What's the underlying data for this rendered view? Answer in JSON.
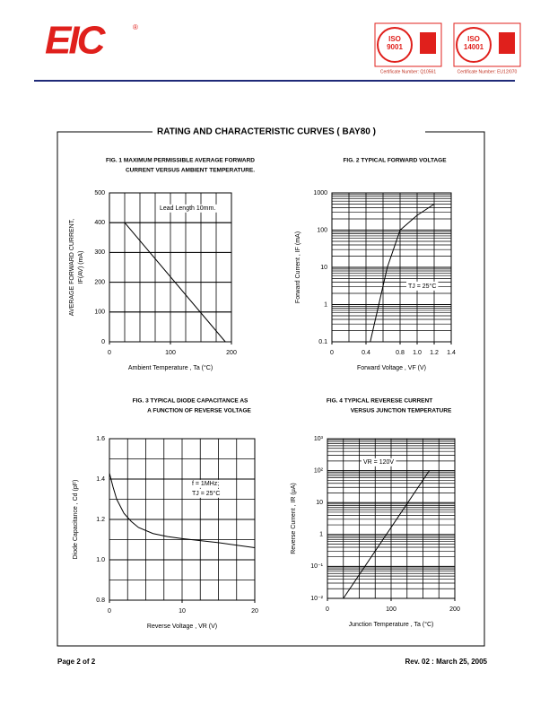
{
  "header": {
    "logo": "EIC",
    "registered": "®",
    "badges": [
      {
        "iso": "ISO",
        "number": "9001",
        "cert": "Certificate Number: Q10561"
      },
      {
        "iso": "ISO",
        "number": "14001",
        "cert": "Certificate Number: EU12/070"
      }
    ]
  },
  "title": "RATING AND CHARACTERISTIC CURVES  ( BAY80 )",
  "footer": {
    "page": "Page 2 of 2",
    "revision": "Rev. 02 : March 25, 2005"
  },
  "chart_data": [
    {
      "type": "line",
      "title_lines": [
        "FIG. 1 MAXIMUM PERMISSIBLE AVERAGE FORWARD",
        "CURRENT VERSUS AMBIENT TEMPERATURE."
      ],
      "xlabel": "Ambient Temperature , Ta (°C)",
      "ylabel_lines": [
        "AVERAGE FORWARD CURRENT,",
        "IF(AV) (mA)"
      ],
      "x": [
        25,
        190
      ],
      "values": [
        400,
        0
      ],
      "color": "#000000",
      "xlim": [
        0,
        200
      ],
      "xticks": [
        0,
        100,
        200
      ],
      "ylim": [
        0,
        500
      ],
      "yticks": [
        0,
        100,
        200,
        300,
        400,
        500
      ],
      "grid": true,
      "xgrid_step": 25,
      "ygrid_step": 100,
      "ylog": false,
      "annotations": [
        "Lead Length 10mm."
      ]
    },
    {
      "type": "line",
      "title_lines": [
        "FIG. 2 TYPICAL FORWARD VOLTAGE"
      ],
      "xlabel": "Forward Voltage , VF (V)",
      "ylabel_lines": [
        "Forward Current , IF (mA)"
      ],
      "x": [
        0.45,
        0.55,
        0.65,
        0.8,
        1.0,
        1.2
      ],
      "values": [
        0.1,
        1,
        10,
        100,
        250,
        500
      ],
      "color": "#000000",
      "xlim": [
        0,
        1.4
      ],
      "xticks": [
        0,
        0.4,
        0.8,
        {
          "value": 1,
          "label": "1.0"
        },
        1.2,
        1.4
      ],
      "ylim": [
        0.1,
        1000
      ],
      "yticks": [
        0.1,
        1,
        10,
        100,
        1000
      ],
      "grid": true,
      "xgrid_step": 0.2,
      "ylog": true,
      "annotations": [
        "TJ = 25°C"
      ]
    },
    {
      "type": "line",
      "title_lines": [
        "FIG. 3 TYPICAL DIODE CAPACITANCE AS",
        "A FUNCTION OF REVERSE VOLTAGE"
      ],
      "xlabel": "Reverse Voltage , VR (V)",
      "ylabel_lines": [
        "Diode Capacitance , Cd (pF)"
      ],
      "x": [
        0,
        0.5,
        1,
        2,
        3,
        4,
        6,
        8,
        10,
        15,
        20
      ],
      "values": [
        1.43,
        1.36,
        1.3,
        1.23,
        1.19,
        1.16,
        1.13,
        1.115,
        1.105,
        1.085,
        1.06
      ],
      "color": "#000000",
      "xlim": [
        0,
        20
      ],
      "xticks": [
        0,
        10,
        20
      ],
      "ylim": [
        0.8,
        1.6
      ],
      "yticks": [
        0.8,
        {
          "value": 1,
          "label": "1.0"
        },
        1.2,
        1.4,
        1.6
      ],
      "grid": true,
      "xgrid_step": 2.5,
      "ygrid_step": 0.1,
      "ylog": false,
      "annotations": [
        "f = 1MHz;",
        "TJ = 25°C"
      ]
    },
    {
      "type": "line",
      "title_lines": [
        "FIG. 4 TYPICAL REVERESE CURRENT",
        "VERSUS JUNCTION TEMPERATURE"
      ],
      "xlabel": "Junction Temperature , Ta (°C)",
      "ylabel_lines": [
        "Reverse Current , IR (μA)"
      ],
      "x": [
        25,
        160
      ],
      "values": [
        0.01,
        100
      ],
      "color": "#000000",
      "xlim": [
        0,
        200
      ],
      "xticks": [
        0,
        100,
        200
      ],
      "ylim": [
        0.01,
        1000
      ],
      "yticks": [
        {
          "value": 0.01,
          "label": "10⁻²"
        },
        {
          "value": 0.1,
          "label": "10⁻¹"
        },
        1,
        10,
        {
          "value": 100,
          "label": "10²"
        },
        {
          "value": 1000,
          "label": "10³"
        }
      ],
      "grid": true,
      "xgrid_step": 25,
      "ylog": true,
      "annotations": [
        "VR = 120V"
      ]
    }
  ]
}
